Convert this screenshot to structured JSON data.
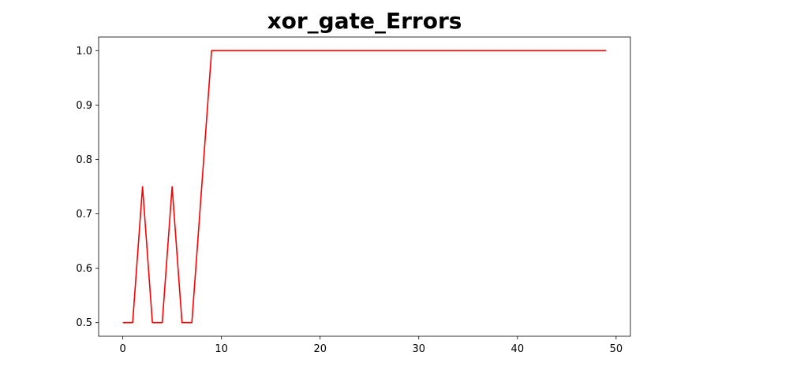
{
  "chart_data": {
    "type": "line",
    "title": "xor_gate_Errors",
    "xlabel": "",
    "ylabel": "",
    "xlim": [
      -2.45,
      51.45
    ],
    "ylim": [
      0.475,
      1.025
    ],
    "x_ticks": [
      0,
      10,
      20,
      30,
      40,
      50
    ],
    "y_ticks": [
      0.5,
      0.6,
      0.7,
      0.8,
      0.9,
      1.0
    ],
    "y_tick_labels": [
      "0.5",
      "0.6",
      "0.7",
      "0.8",
      "0.9",
      "1.0"
    ],
    "grid": false,
    "series": [
      {
        "color": "#ff0000",
        "x": [
          0,
          1,
          2,
          3,
          4,
          5,
          6,
          7,
          8,
          9,
          10,
          11,
          12,
          13,
          14,
          15,
          16,
          17,
          18,
          19,
          20,
          21,
          22,
          23,
          24,
          25,
          26,
          27,
          28,
          29,
          30,
          31,
          32,
          33,
          34,
          35,
          36,
          37,
          38,
          39,
          40,
          41,
          42,
          43,
          44,
          45,
          46,
          47,
          48,
          49
        ],
        "values": [
          0.5,
          0.5,
          0.75,
          0.5,
          0.5,
          0.75,
          0.5,
          0.5,
          0.75,
          1.0,
          1.0,
          1.0,
          1.0,
          1.0,
          1.0,
          1.0,
          1.0,
          1.0,
          1.0,
          1.0,
          1.0,
          1.0,
          1.0,
          1.0,
          1.0,
          1.0,
          1.0,
          1.0,
          1.0,
          1.0,
          1.0,
          1.0,
          1.0,
          1.0,
          1.0,
          1.0,
          1.0,
          1.0,
          1.0,
          1.0,
          1.0,
          1.0,
          1.0,
          1.0,
          1.0,
          1.0,
          1.0,
          1.0,
          1.0,
          1.0
        ]
      }
    ]
  }
}
